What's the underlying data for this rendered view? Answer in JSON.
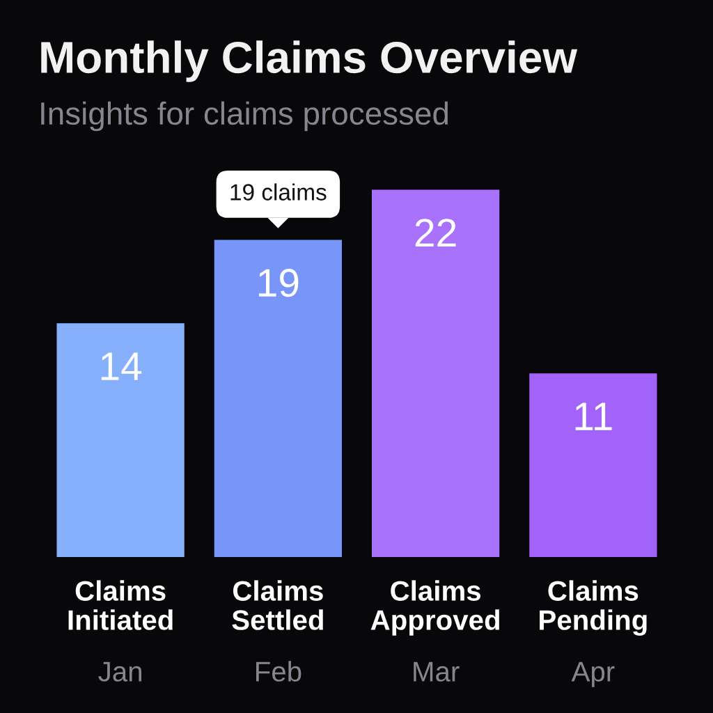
{
  "chart_data": {
    "type": "bar",
    "title": "Monthly Claims Overview",
    "subtitle": "Insights for claims processed",
    "categories": [
      "Claims\nInitiated\nJan",
      "Claims\nSettled\nFeb",
      "Claims\nApproved\nMar",
      "Claims\nPending\nApr"
    ],
    "values": [
      14,
      19,
      22,
      11
    ],
    "colors": [
      "#86affc",
      "#7896fa",
      "#a872fd",
      "#a263fb"
    ],
    "data_labels": true,
    "annotations": [
      {
        "text": "19 claims",
        "x": "Claims\nSettled\nFeb",
        "y": 19
      }
    ]
  }
}
